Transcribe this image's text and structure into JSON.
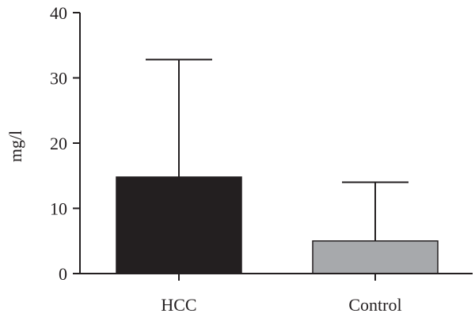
{
  "chart_data": {
    "type": "bar",
    "title": "",
    "xlabel": "",
    "ylabel": "mg/l",
    "ylim": [
      0,
      40
    ],
    "yticks": [
      0,
      10,
      20,
      30,
      40
    ],
    "grid": false,
    "categories": [
      "HCC",
      "Control"
    ],
    "values": [
      14.8,
      5.0
    ],
    "error_upper": [
      32.8,
      14.0
    ],
    "colors": [
      "#231f20",
      "#a7a9ac"
    ]
  }
}
